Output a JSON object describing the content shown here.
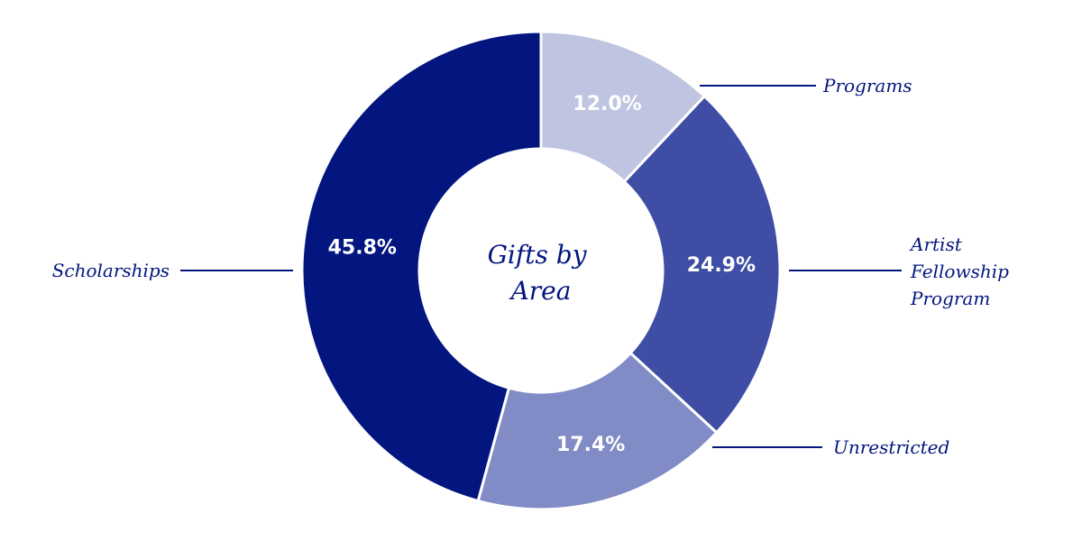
{
  "chart_data": {
    "type": "pie",
    "style": "donut",
    "title": "Gifts by Area",
    "title_lines": [
      "Gifts by",
      "Area"
    ],
    "slices": [
      {
        "label": "Programs",
        "label_lines": [
          "Programs"
        ],
        "value": 12.0,
        "value_label": "12.0%",
        "color": "#bfc4e1"
      },
      {
        "label": "Artist Fellowship Program",
        "label_lines": [
          "Artist",
          "Fellowship",
          "Program"
        ],
        "value": 24.9,
        "value_label": "24.9%",
        "color": "#3f4ea4"
      },
      {
        "label": "Unrestricted",
        "label_lines": [
          "Unrestricted"
        ],
        "value": 17.4,
        "value_label": "17.4%",
        "color": "#818bc5"
      },
      {
        "label": "Scholarships",
        "label_lines": [
          "Scholarships"
        ],
        "value": 45.8,
        "value_label": "45.8%",
        "color": "#03167f"
      }
    ],
    "start_angle": "12 o'clock",
    "direction": "clockwise"
  },
  "colors": {
    "text": "#03167f",
    "background": "#ffffff"
  }
}
